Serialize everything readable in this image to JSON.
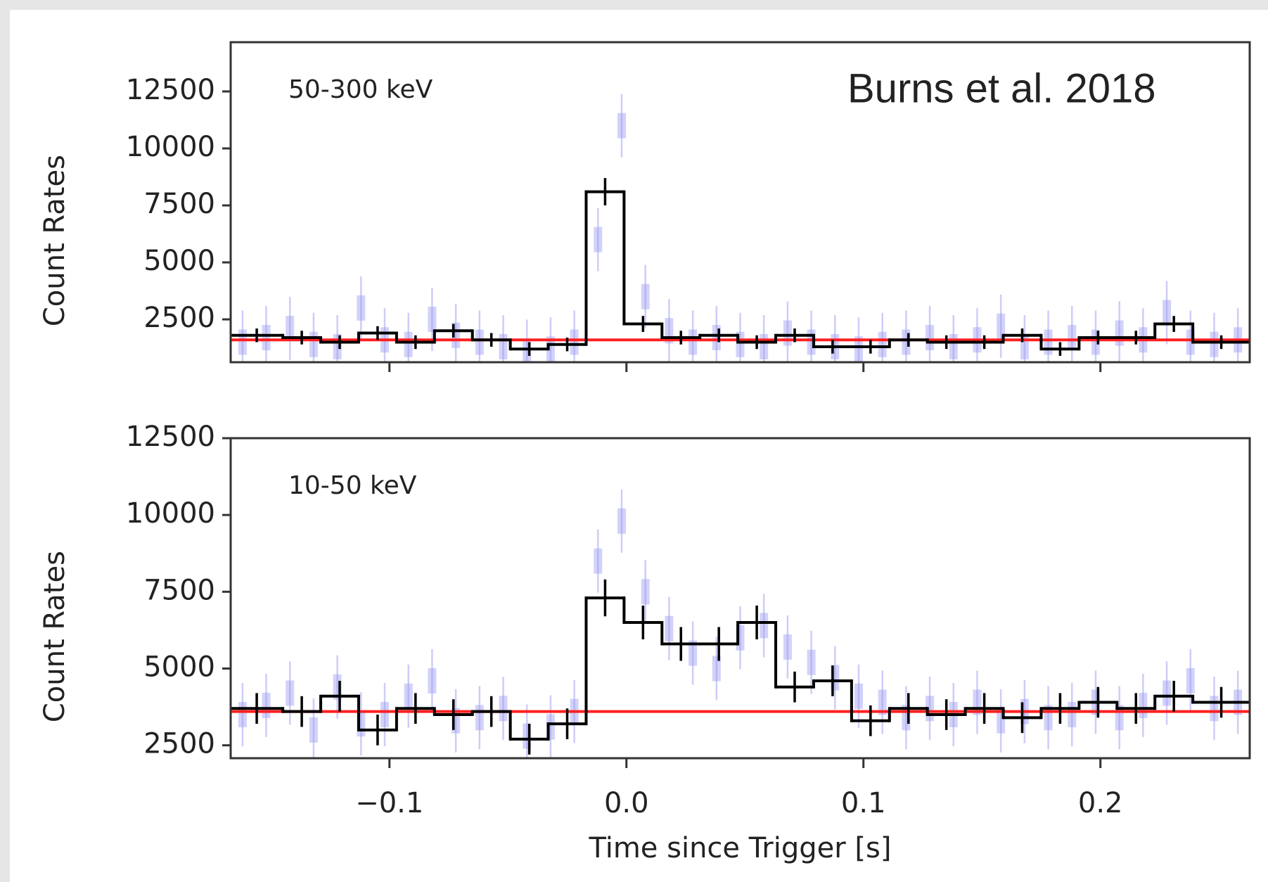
{
  "chart_data": [
    {
      "type": "step",
      "annotation": "Burns et al. 2018",
      "label": "50-300 keV",
      "ylabel": "Count Rates",
      "xlim": [
        -0.167,
        0.263
      ],
      "ylim": [
        620,
        14660
      ],
      "xticks": [
        -0.1,
        0.0,
        0.1,
        0.2
      ],
      "yticks": [
        2500,
        5000,
        7500,
        10000,
        12500
      ],
      "bins": [
        -0.167,
        -0.145,
        -0.129,
        -0.113,
        -0.097,
        -0.081,
        -0.065,
        -0.049,
        -0.033,
        -0.017,
        -0.001,
        0.015,
        0.031,
        0.047,
        0.063,
        0.079,
        0.095,
        0.111,
        0.127,
        0.143,
        0.159,
        0.175,
        0.191,
        0.207,
        0.223,
        0.239,
        0.263
      ],
      "binned": {
        "color": "#000000",
        "values": [
          1800,
          1700,
          1500,
          1900,
          1500,
          2000,
          1600,
          1200,
          1400,
          8100,
          2300,
          1700,
          1800,
          1500,
          1800,
          1300,
          1300,
          1600,
          1500,
          1500,
          1800,
          1200,
          1700,
          1700,
          2300,
          1500
        ],
        "errors": [
          300,
          300,
          300,
          300,
          300,
          300,
          300,
          300,
          300,
          600,
          350,
          300,
          300,
          300,
          300,
          300,
          300,
          300,
          300,
          300,
          300,
          300,
          300,
          300,
          350,
          300
        ]
      },
      "fine": {
        "color": "#9c9cf2",
        "x": [
          -0.162,
          -0.152,
          -0.142,
          -0.132,
          -0.122,
          -0.112,
          -0.102,
          -0.092,
          -0.082,
          -0.072,
          -0.062,
          -0.052,
          -0.042,
          -0.032,
          -0.022,
          -0.012,
          -0.002,
          0.008,
          0.018,
          0.028,
          0.038,
          0.048,
          0.058,
          0.068,
          0.078,
          0.088,
          0.098,
          0.108,
          0.118,
          0.128,
          0.138,
          0.148,
          0.158,
          0.168,
          0.178,
          0.188,
          0.198,
          0.208,
          0.218,
          0.228,
          0.238,
          0.248,
          0.258
        ],
        "values": [
          1500,
          1700,
          2100,
          1400,
          1300,
          3000,
          1600,
          1400,
          2500,
          1800,
          1500,
          1300,
          1100,
          1200,
          1500,
          6000,
          11000,
          3500,
          2000,
          1500,
          1700,
          1400,
          1300,
          1900,
          1500,
          1300,
          1200,
          1400,
          1500,
          1700,
          1300,
          1600,
          2200,
          1300,
          1500,
          1700,
          1500,
          1900,
          1600,
          2800,
          1500,
          1400,
          1600
        ]
      },
      "background": {
        "color": "#ff2020",
        "value": 1600
      }
    },
    {
      "type": "step",
      "label": "10-50 keV",
      "ylabel": "Count Rates",
      "xlabel": "Time since Trigger [s]",
      "xlim": [
        -0.167,
        0.263
      ],
      "ylim": [
        2080,
        12500
      ],
      "xticks": [
        {
          "value": -0.1,
          "label": "−0.1"
        },
        {
          "value": 0.0,
          "label": "0.0"
        },
        {
          "value": 0.1,
          "label": "0.1"
        },
        {
          "value": 0.2,
          "label": "0.2"
        }
      ],
      "yticks": [
        2500,
        5000,
        7500,
        10000,
        12500
      ],
      "bins": [
        -0.167,
        -0.145,
        -0.129,
        -0.113,
        -0.097,
        -0.081,
        -0.065,
        -0.049,
        -0.033,
        -0.017,
        -0.001,
        0.015,
        0.031,
        0.047,
        0.063,
        0.079,
        0.095,
        0.111,
        0.127,
        0.143,
        0.159,
        0.175,
        0.191,
        0.207,
        0.223,
        0.239,
        0.263
      ],
      "binned": {
        "color": "#000000",
        "values": [
          3700,
          3600,
          4100,
          3000,
          3700,
          3500,
          3600,
          2700,
          3200,
          7300,
          6500,
          5800,
          5800,
          6500,
          4400,
          4600,
          3300,
          3700,
          3500,
          3700,
          3400,
          3700,
          3900,
          3700,
          4100,
          3900
        ],
        "errors": [
          500,
          500,
          500,
          500,
          500,
          500,
          500,
          500,
          500,
          600,
          550,
          550,
          550,
          550,
          500,
          500,
          500,
          500,
          500,
          500,
          500,
          500,
          500,
          500,
          500,
          500
        ]
      },
      "fine": {
        "color": "#9c9cf2",
        "x": [
          -0.162,
          -0.152,
          -0.142,
          -0.132,
          -0.122,
          -0.112,
          -0.102,
          -0.092,
          -0.082,
          -0.072,
          -0.062,
          -0.052,
          -0.042,
          -0.032,
          -0.022,
          -0.012,
          -0.002,
          0.008,
          0.018,
          0.028,
          0.038,
          0.048,
          0.058,
          0.068,
          0.078,
          0.088,
          0.098,
          0.108,
          0.118,
          0.128,
          0.138,
          0.148,
          0.158,
          0.168,
          0.178,
          0.188,
          0.198,
          0.208,
          0.218,
          0.228,
          0.238,
          0.248,
          0.258
        ],
        "values": [
          3500,
          3800,
          4200,
          3000,
          4400,
          3200,
          3500,
          4100,
          4600,
          3300,
          3400,
          3700,
          2800,
          3100,
          3600,
          8500,
          9800,
          7500,
          6300,
          5500,
          5000,
          6000,
          6400,
          5700,
          5200,
          4700,
          4100,
          3900,
          3400,
          3700,
          3500,
          3900,
          3300,
          3600,
          3400,
          3500,
          3900,
          3400,
          3800,
          4200,
          4600,
          3700,
          3900
        ]
      },
      "background": {
        "color": "#ff2020",
        "value": 3600
      }
    }
  ]
}
